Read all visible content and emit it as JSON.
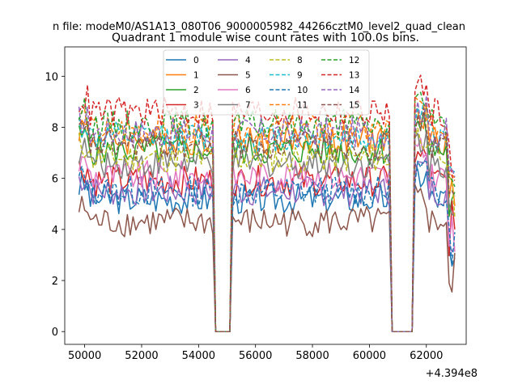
{
  "chart_data": {
    "type": "line",
    "suptitle": "n file: modeM0/AS1A13_080T06_9000005982_44266cztM0_level2_quad_clean",
    "title": "Quadrant 1 module wise count rates with 100.0s bins.",
    "xlabel": "",
    "ylabel": "",
    "x_offset_label": "+4.394e8",
    "xlim": [
      49300,
      63400
    ],
    "ylim": [
      -0.5,
      11.15
    ],
    "x_ticks": [
      50000,
      52000,
      54000,
      56000,
      58000,
      60000,
      62000
    ],
    "y_ticks": [
      0,
      2,
      4,
      6,
      8,
      10
    ],
    "grid": false,
    "legend": {
      "placement": "top-center",
      "columns": 4
    },
    "segments": [
      [
        49800,
        54500
      ],
      [
        55200,
        60700
      ],
      [
        61600,
        63000
      ]
    ],
    "gap_floor": 0,
    "series": [
      {
        "name": "0",
        "color": "#1f77b4",
        "dashed": false,
        "level": 5.2
      },
      {
        "name": "1",
        "color": "#ff7f0e",
        "dashed": false,
        "level": 7.5
      },
      {
        "name": "2",
        "color": "#2ca02c",
        "dashed": false,
        "level": 7.1
      },
      {
        "name": "3",
        "color": "#d62728",
        "dashed": false,
        "level": 5.9
      },
      {
        "name": "4",
        "color": "#9467bd",
        "dashed": false,
        "level": 5.5
      },
      {
        "name": "5",
        "color": "#8c564b",
        "dashed": false,
        "level": 4.3
      },
      {
        "name": "6",
        "color": "#e377c2",
        "dashed": false,
        "level": 6.1
      },
      {
        "name": "7",
        "color": "#7f7f7f",
        "dashed": false,
        "level": 6.6
      },
      {
        "name": "8",
        "color": "#bcbd22",
        "dashed": true,
        "level": 6.8
      },
      {
        "name": "9",
        "color": "#17becf",
        "dashed": true,
        "level": 7.6
      },
      {
        "name": "10",
        "color": "#1f77b4",
        "dashed": true,
        "level": 5.5
      },
      {
        "name": "11",
        "color": "#ff7f0e",
        "dashed": true,
        "level": 7.9
      },
      {
        "name": "12",
        "color": "#2ca02c",
        "dashed": true,
        "level": 8.1
      },
      {
        "name": "13",
        "color": "#d62728",
        "dashed": true,
        "level": 8.6
      },
      {
        "name": "14",
        "color": "#9467bd",
        "dashed": true,
        "level": 7.8
      },
      {
        "name": "15",
        "color": "#8c564b",
        "dashed": true,
        "level": 7.3
      }
    ]
  }
}
